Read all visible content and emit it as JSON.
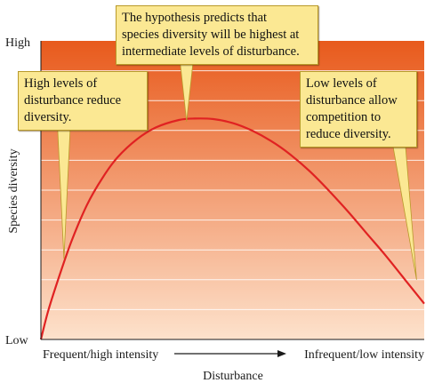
{
  "chart_data": {
    "type": "line",
    "title": "",
    "xlabel": "Disturbance",
    "ylabel": "Species diversity",
    "x_tick_labels": {
      "left": "Frequent/high intensity",
      "right": "Infrequent/low intensity"
    },
    "y_tick_labels": {
      "top": "High",
      "bottom": "Low"
    },
    "xlim": [
      0,
      1
    ],
    "ylim": [
      0,
      1
    ],
    "grid": true,
    "legend": "none",
    "series": [
      {
        "x": [
          0.0,
          0.02,
          0.05,
          0.08,
          0.12,
          0.16,
          0.2,
          0.25,
          0.3,
          0.36,
          0.4,
          0.45,
          0.5,
          0.55,
          0.6,
          0.65,
          0.7,
          0.75,
          0.8,
          0.85,
          0.9,
          0.95,
          1.0
        ],
        "y": [
          0.0,
          0.1,
          0.22,
          0.33,
          0.45,
          0.54,
          0.61,
          0.67,
          0.71,
          0.735,
          0.74,
          0.738,
          0.725,
          0.7,
          0.665,
          0.62,
          0.565,
          0.5,
          0.43,
          0.355,
          0.28,
          0.2,
          0.12
        ],
        "color": "#e02222"
      }
    ],
    "annotations": [
      {
        "text": "High levels of\ndisturbance reduce\ndiversity.",
        "target": [
          0.06,
          0.27
        ]
      },
      {
        "text": "The hypothesis predicts that\nspecies diversity will be highest at\nintermediate levels of disturbance.",
        "target": [
          0.38,
          0.73
        ]
      },
      {
        "text": "Low levels of\ndisturbance allow\ncompetition to\nreduce diversity.",
        "target": [
          0.98,
          0.2
        ]
      }
    ],
    "colors": {
      "plot_top": "#e85a1c",
      "plot_bottom": "#fde2cc",
      "grid": "#ffffff",
      "curve": "#e02222",
      "callout_fill": "#fbe893",
      "callout_border": "#b99a2a"
    }
  }
}
